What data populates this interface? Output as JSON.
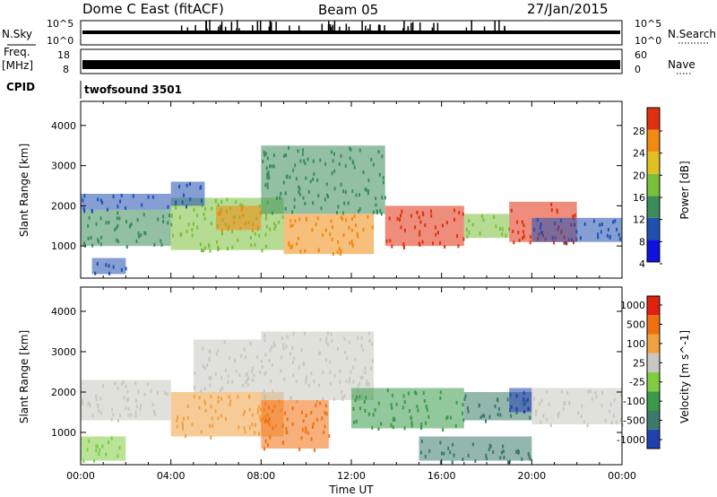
{
  "header": {
    "title": "Dome C East (fitACF)",
    "beam": "Beam 05",
    "date": "27/Jan/2015"
  },
  "top_panels": {
    "nsky_label": "N.Sky",
    "nsky_ticks": [
      "10^5",
      "10^0"
    ],
    "nsearch_label": "N.Search",
    "nsearch_ticks": [
      "10^5",
      "10^0"
    ],
    "freq_label": "Freq.",
    "freq_unit": "[MHz]",
    "freq_ticks": [
      "18",
      "8"
    ],
    "nave_label": "Nave",
    "nave_ticks": [
      "60",
      "0"
    ],
    "cpid_label": "CPID",
    "cpid_value": "twofsound 3501"
  },
  "chart_data": [
    {
      "type": "heatmap",
      "name": "power",
      "ylabel": "Slant Range [km]",
      "ylim": [
        200,
        4600
      ],
      "yticks": [
        "4000",
        "3000",
        "2000",
        "1000"
      ],
      "xlim": [
        0,
        24
      ],
      "colorbar": {
        "label": "Power [dB]",
        "ticks": [
          "28",
          "24",
          "20",
          "16",
          "12",
          "8",
          "4"
        ],
        "colors": [
          "#1010e0",
          "#2050b0",
          "#3a8c5a",
          "#7abf3a",
          "#e0c020",
          "#f08a10",
          "#e03010"
        ]
      },
      "bands": [
        {
          "t": [
            0.0,
            4.0
          ],
          "r": [
            1000,
            1900
          ],
          "c": "#3a8c5a"
        },
        {
          "t": [
            0.0,
            4.0
          ],
          "r": [
            1900,
            2300
          ],
          "c": "#2050b0"
        },
        {
          "t": [
            0.5,
            2.0
          ],
          "r": [
            300,
            700
          ],
          "c": "#2050b0"
        },
        {
          "t": [
            4.0,
            9.0
          ],
          "r": [
            900,
            2200
          ],
          "c": "#7abf3a"
        },
        {
          "t": [
            6.0,
            8.0
          ],
          "r": [
            1400,
            2000
          ],
          "c": "#f08a10"
        },
        {
          "t": [
            8.0,
            13.5
          ],
          "r": [
            1800,
            3500
          ],
          "c": "#3a8c5a"
        },
        {
          "t": [
            9.0,
            13.0
          ],
          "r": [
            800,
            1800
          ],
          "c": "#f08a10"
        },
        {
          "t": [
            13.5,
            17.0
          ],
          "r": [
            1000,
            2000
          ],
          "c": "#e03010"
        },
        {
          "t": [
            17.0,
            19.0
          ],
          "r": [
            1200,
            1800
          ],
          "c": "#7abf3a"
        },
        {
          "t": [
            19.0,
            22.0
          ],
          "r": [
            1100,
            2100
          ],
          "c": "#e03010"
        },
        {
          "t": [
            20.0,
            24.0
          ],
          "r": [
            1100,
            1700
          ],
          "c": "#2050b0"
        },
        {
          "t": [
            4.0,
            5.5
          ],
          "r": [
            2000,
            2600
          ],
          "c": "#2050b0"
        }
      ]
    },
    {
      "type": "heatmap",
      "name": "velocity",
      "ylabel": "Slant Range [km]",
      "ylim": [
        200,
        4600
      ],
      "yticks": [
        "4000",
        "3000",
        "2000",
        "1000"
      ],
      "xlim": [
        0,
        24
      ],
      "xticks": [
        "00:00",
        "04:00",
        "08:00",
        "12:00",
        "16:00",
        "20:00",
        "00:00"
      ],
      "xlabel": "Time UT",
      "colorbar": {
        "label": "Velocity [m s^-1]",
        "ticks": [
          "1000",
          "500",
          "100",
          "25",
          "-25",
          "-100",
          "-500",
          "-1000"
        ],
        "colors": [
          "#2040b0",
          "#3a7a6a",
          "#3a9a4a",
          "#80cc40",
          "#c8c8c0",
          "#f0a040",
          "#f07010",
          "#e02010"
        ]
      },
      "bands": [
        {
          "t": [
            0.0,
            4.0
          ],
          "r": [
            1300,
            2300
          ],
          "c": "#c8c8c0"
        },
        {
          "t": [
            0.0,
            2.0
          ],
          "r": [
            300,
            900
          ],
          "c": "#80cc40"
        },
        {
          "t": [
            4.0,
            9.0
          ],
          "r": [
            900,
            2000
          ],
          "c": "#f0a040"
        },
        {
          "t": [
            5.0,
            8.0
          ],
          "r": [
            2000,
            3300
          ],
          "c": "#c8c8c0"
        },
        {
          "t": [
            8.0,
            13.0
          ],
          "r": [
            1800,
            3500
          ],
          "c": "#c8c8c0"
        },
        {
          "t": [
            8.0,
            11.0
          ],
          "r": [
            600,
            1800
          ],
          "c": "#f07010"
        },
        {
          "t": [
            12.0,
            17.0
          ],
          "r": [
            1100,
            2100
          ],
          "c": "#3a9a4a"
        },
        {
          "t": [
            17.0,
            20.0
          ],
          "r": [
            1300,
            2000
          ],
          "c": "#3a7a6a"
        },
        {
          "t": [
            19.0,
            20.0
          ],
          "r": [
            1500,
            2100
          ],
          "c": "#2040b0"
        },
        {
          "t": [
            20.0,
            24.0
          ],
          "r": [
            1200,
            2100
          ],
          "c": "#c8c8c0"
        },
        {
          "t": [
            15.0,
            20.0
          ],
          "r": [
            300,
            900
          ],
          "c": "#3a7a6a"
        }
      ]
    }
  ]
}
